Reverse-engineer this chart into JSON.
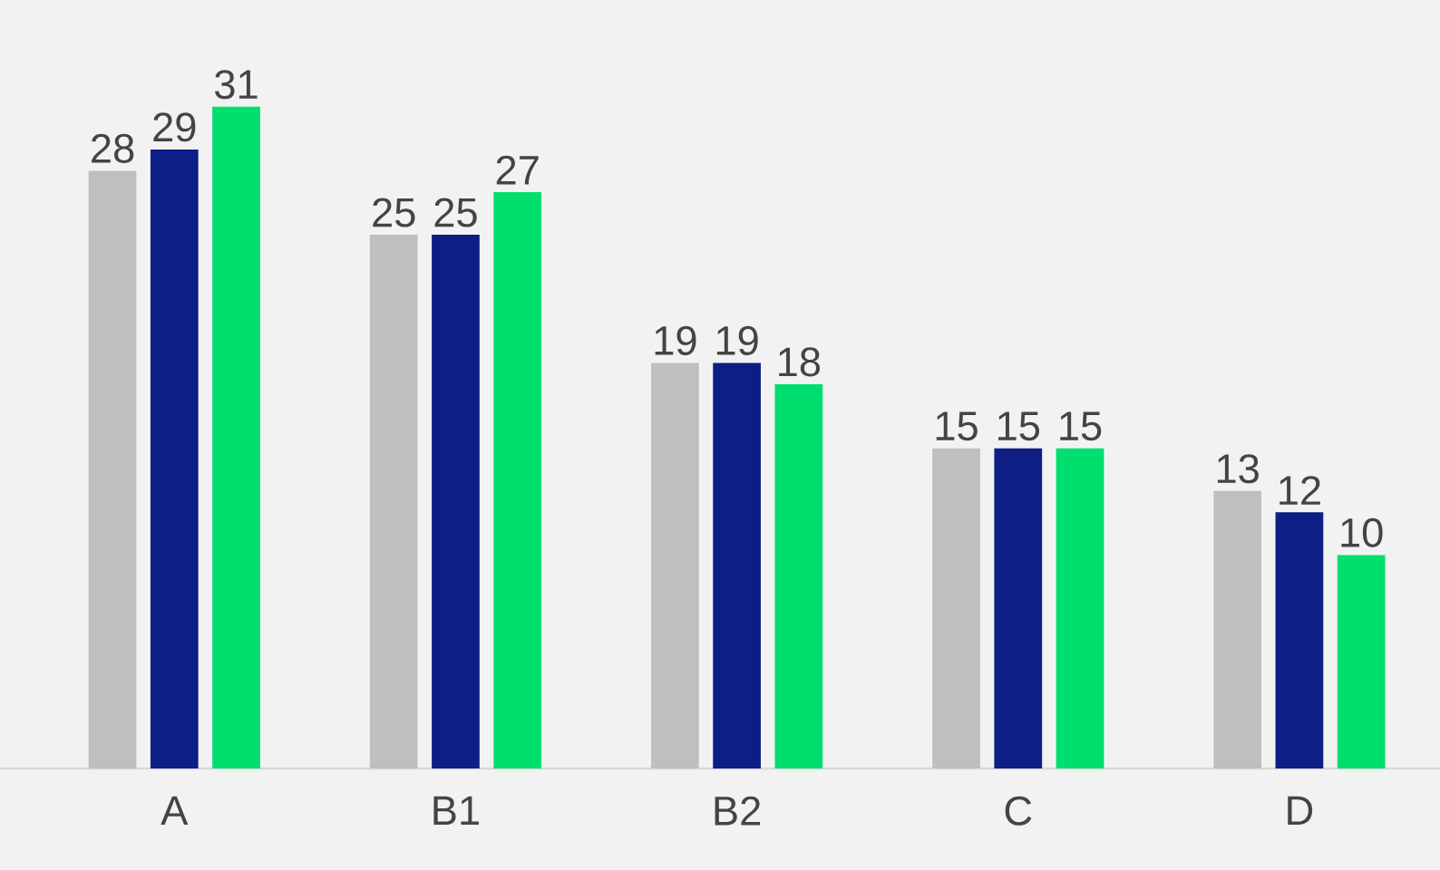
{
  "chart_data": {
    "type": "bar",
    "categories": [
      "A",
      "B1",
      "B2",
      "C",
      "D"
    ],
    "series": [
      {
        "color": "#bfbfbf",
        "values": [
          28,
          25,
          19,
          15,
          13
        ]
      },
      {
        "color": "#0d1f85",
        "values": [
          29,
          25,
          19,
          15,
          12
        ]
      },
      {
        "color": "#00df6e",
        "values": [
          31,
          27,
          18,
          15,
          10
        ]
      }
    ],
    "ylim": [
      0,
      36
    ],
    "data_labels": true
  }
}
